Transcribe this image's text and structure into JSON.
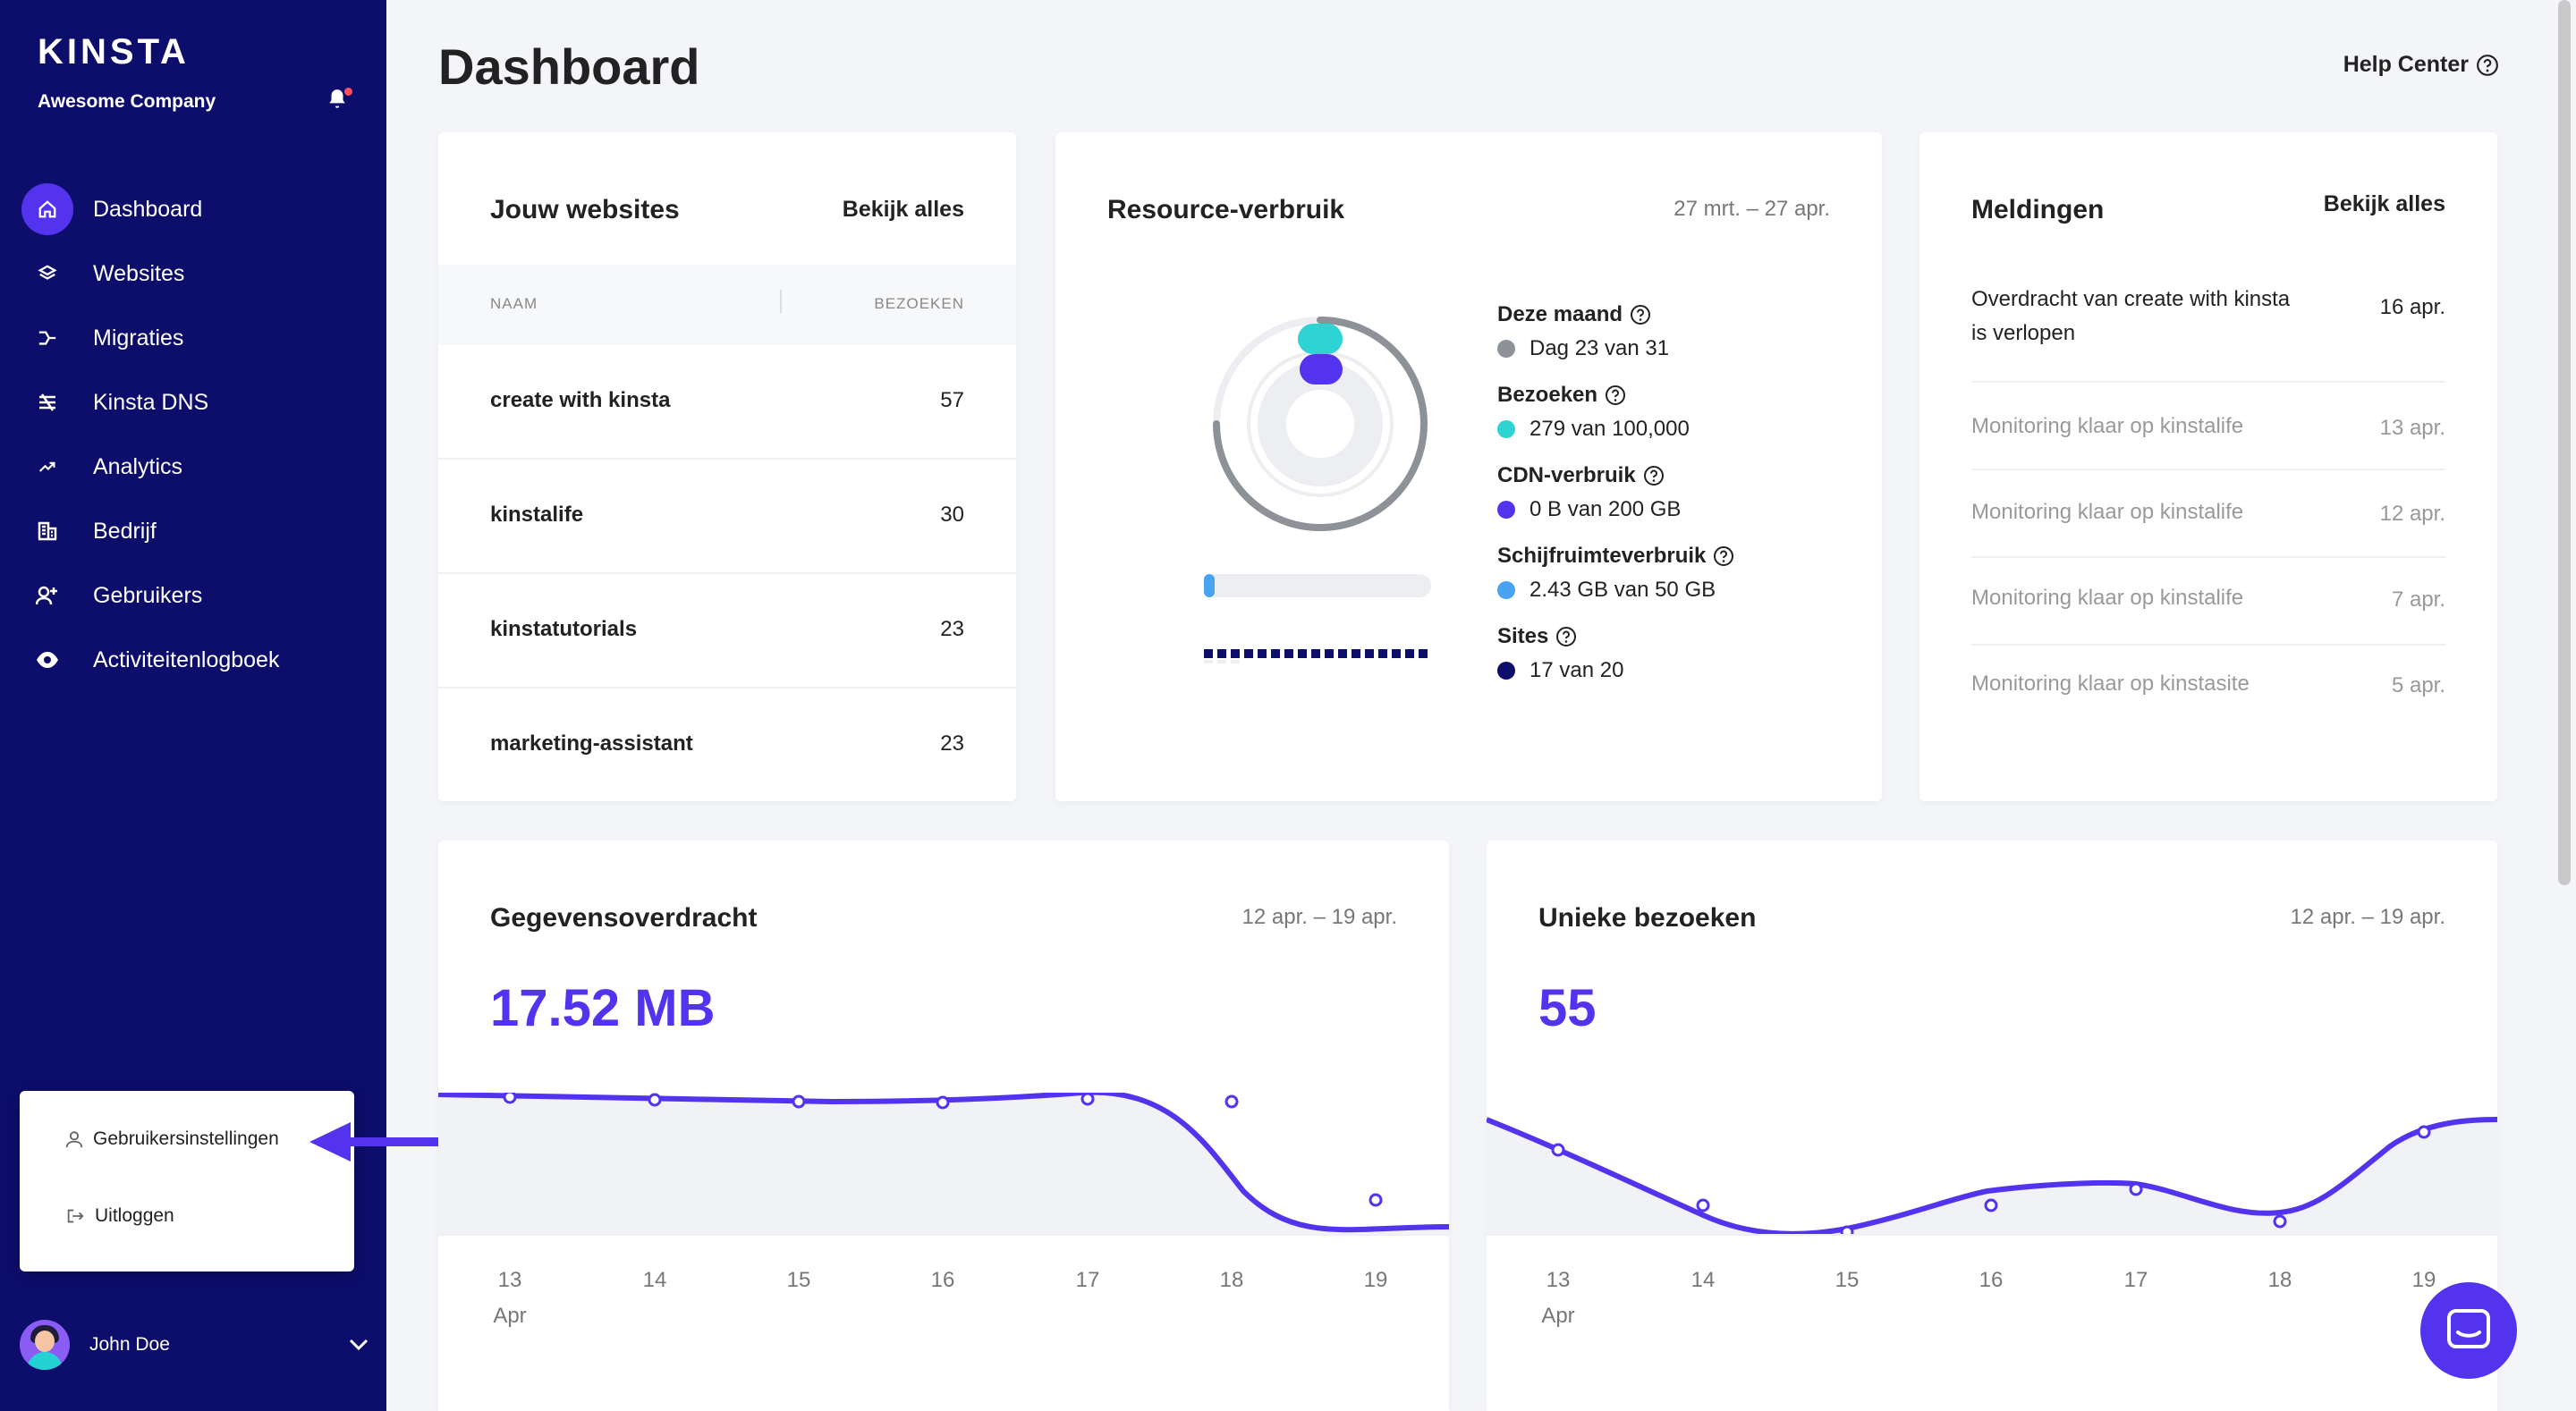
{
  "sidebar": {
    "logo": "KINSTA",
    "company": "Awesome Company",
    "items": [
      {
        "label": "Dashboard",
        "icon": "home-icon"
      },
      {
        "label": "Websites",
        "icon": "layers-icon"
      },
      {
        "label": "Migraties",
        "icon": "migrate-icon"
      },
      {
        "label": "Kinsta DNS",
        "icon": "dns-icon"
      },
      {
        "label": "Analytics",
        "icon": "trend-icon"
      },
      {
        "label": "Bedrijf",
        "icon": "building-icon"
      },
      {
        "label": "Gebruikers",
        "icon": "add-user-icon"
      },
      {
        "label": "Activiteitenlogboek",
        "icon": "eye-icon"
      }
    ],
    "popup": {
      "settings": "Gebruikersinstellingen",
      "logout": "Uitloggen"
    },
    "user": "John Doe"
  },
  "header": {
    "title": "Dashboard",
    "help": "Help Center"
  },
  "websites": {
    "title": "Jouw websites",
    "link": "Bekijk alles",
    "col_name": "NAAM",
    "col_visits": "BEZOEKEN",
    "rows": [
      {
        "name": "create with kinsta",
        "visits": "57"
      },
      {
        "name": "kinstalife",
        "visits": "30"
      },
      {
        "name": "kinstatutorials",
        "visits": "23"
      },
      {
        "name": "marketing-assistant",
        "visits": "23"
      }
    ]
  },
  "resources": {
    "title": "Resource-verbruik",
    "date": "27 mrt. – 27 apr.",
    "items": [
      {
        "title": "Deze maand",
        "value": "Dag 23 van 31",
        "color": "#8c9298"
      },
      {
        "title": "Bezoeken",
        "value": "279 van 100,000",
        "color": "#2ed3d3"
      },
      {
        "title": "CDN-verbruik",
        "value": "0 B van 200 GB",
        "color": "#5333ed"
      },
      {
        "title": "Schijfruimteverbruik",
        "value": "2.43 GB van 50 GB",
        "color": "#4aa3f0"
      },
      {
        "title": "Sites",
        "value": "17 van 20",
        "color": "#0d0d6b"
      }
    ]
  },
  "notifications": {
    "title": "Meldingen",
    "link": "Bekijk alles",
    "rows": [
      {
        "text": "Overdracht van create with kinsta is verlopen",
        "date": "16 apr."
      },
      {
        "text": "Monitoring klaar op kinstalife",
        "date": "13 apr."
      },
      {
        "text": "Monitoring klaar op kinstalife",
        "date": "12 apr."
      },
      {
        "text": "Monitoring klaar op kinstalife",
        "date": "7 apr."
      },
      {
        "text": "Monitoring klaar op kinstasite",
        "date": "5 apr."
      }
    ]
  },
  "transfer": {
    "title": "Gegevensoverdracht",
    "date": "12 apr. – 19 apr.",
    "value": "17.52 MB",
    "ticks": [
      "13",
      "14",
      "15",
      "16",
      "17",
      "18",
      "19"
    ],
    "month": "Apr"
  },
  "visits": {
    "title": "Unieke bezoeken",
    "date": "12 apr. – 19 apr.",
    "value": "55",
    "ticks": [
      "13",
      "14",
      "15",
      "16",
      "17",
      "18",
      "19"
    ],
    "month": "Apr"
  },
  "colors": {
    "accent": "#5333ed",
    "sidebar": "#0d0d6b"
  }
}
